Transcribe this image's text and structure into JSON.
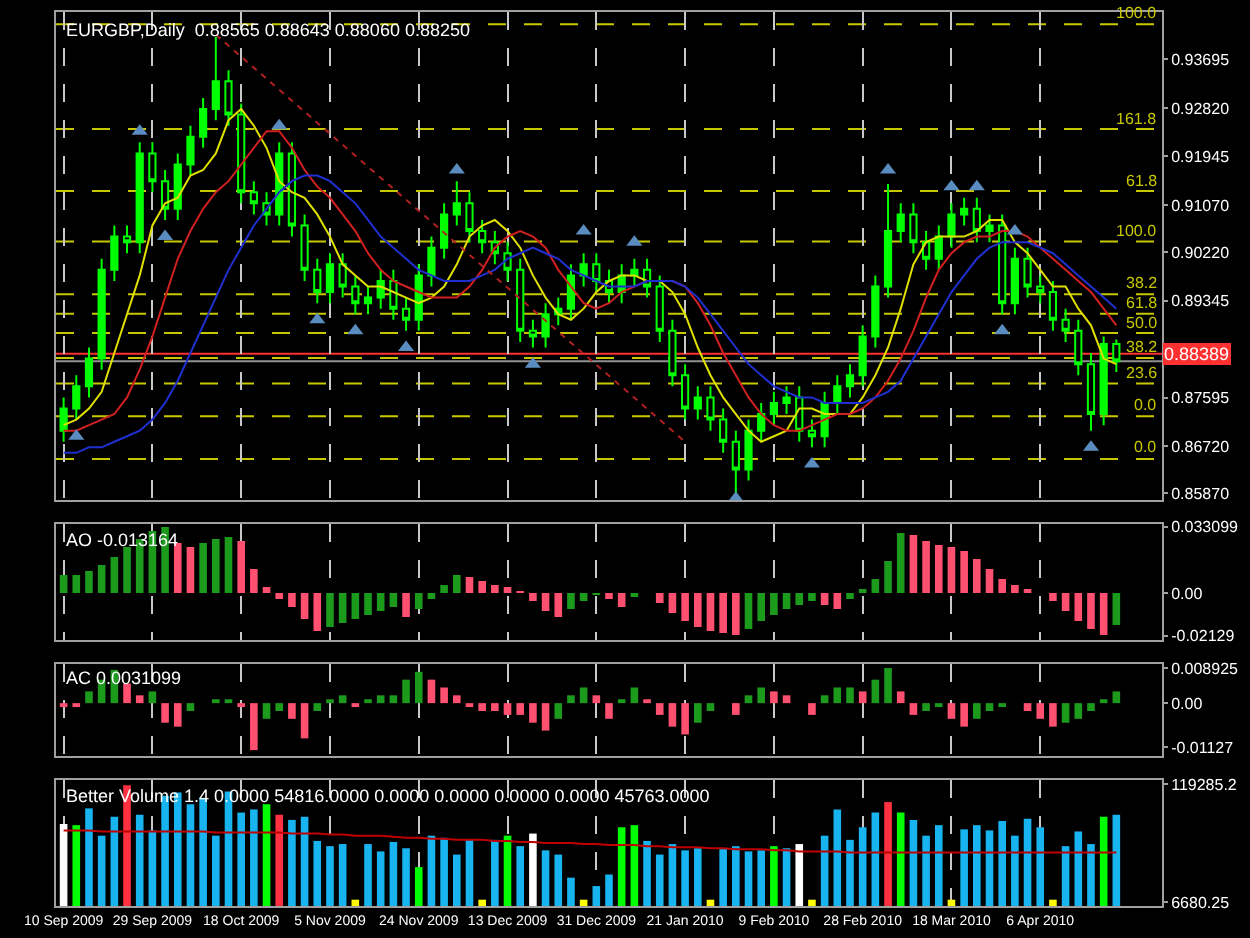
{
  "chart_data": [
    {
      "type": "candlestick",
      "title": "EURGBP,Daily  0.88565 0.88643 0.88060 0.88250",
      "color": "#00ff00",
      "grid": "x",
      "tick_labels": "y",
      "categories": [
        null,
        null,
        null,
        null,
        null,
        null,
        null,
        null,
        null,
        null,
        null,
        null,
        null,
        null,
        null,
        null,
        null,
        null,
        null,
        null,
        null,
        null,
        null,
        null,
        null,
        null,
        null,
        null,
        null,
        null,
        null,
        null,
        null,
        null,
        null,
        null,
        null,
        null,
        null,
        null,
        null,
        null,
        null,
        null,
        null,
        null,
        null,
        null,
        null,
        null,
        null,
        null,
        null,
        null,
        null,
        null,
        null,
        null,
        null,
        null,
        null,
        null,
        null,
        null,
        null,
        null,
        null,
        null,
        null,
        null,
        null,
        null,
        null,
        null,
        null,
        null,
        null,
        null,
        null,
        null,
        null,
        null,
        null,
        null
      ],
      "ohlc": [
        [
          0.87,
          0.876,
          0.868,
          0.874
        ],
        [
          0.874,
          0.88,
          0.872,
          0.878
        ],
        [
          0.878,
          0.885,
          0.876,
          0.883
        ],
        [
          0.883,
          0.901,
          0.881,
          0.899
        ],
        [
          0.899,
          0.907,
          0.897,
          0.905
        ],
        [
          0.905,
          0.907,
          0.902,
          0.904
        ],
        [
          0.904,
          0.922,
          0.902,
          0.92
        ],
        [
          0.92,
          0.922,
          0.913,
          0.915
        ],
        [
          0.915,
          0.917,
          0.908,
          0.91
        ],
        [
          0.91,
          0.92,
          0.908,
          0.918
        ],
        [
          0.918,
          0.925,
          0.916,
          0.923
        ],
        [
          0.923,
          0.93,
          0.921,
          0.928
        ],
        [
          0.928,
          0.941,
          0.926,
          0.933
        ],
        [
          0.933,
          0.935,
          0.925,
          0.927
        ],
        [
          0.927,
          0.929,
          0.911,
          0.913
        ],
        [
          0.913,
          0.915,
          0.909,
          0.911
        ],
        [
          0.911,
          0.913,
          0.907,
          0.909
        ],
        [
          0.909,
          0.922,
          0.907,
          0.92
        ],
        [
          0.92,
          0.922,
          0.905,
          0.907
        ],
        [
          0.907,
          0.909,
          0.897,
          0.899
        ],
        [
          0.899,
          0.901,
          0.893,
          0.895
        ],
        [
          0.895,
          0.902,
          0.893,
          0.9
        ],
        [
          0.9,
          0.902,
          0.894,
          0.896
        ],
        [
          0.896,
          0.898,
          0.891,
          0.893
        ],
        [
          0.893,
          0.896,
          0.891,
          0.894
        ],
        [
          0.894,
          0.899,
          0.892,
          0.897
        ],
        [
          0.897,
          0.899,
          0.89,
          0.892
        ],
        [
          0.892,
          0.894,
          0.888,
          0.89
        ],
        [
          0.89,
          0.9,
          0.888,
          0.898
        ],
        [
          0.898,
          0.905,
          0.896,
          0.903
        ],
        [
          0.903,
          0.911,
          0.901,
          0.909
        ],
        [
          0.909,
          0.915,
          0.907,
          0.911
        ],
        [
          0.911,
          0.913,
          0.904,
          0.906
        ],
        [
          0.906,
          0.908,
          0.902,
          0.904
        ],
        [
          0.904,
          0.906,
          0.9,
          0.902
        ],
        [
          0.902,
          0.904,
          0.897,
          0.899
        ],
        [
          0.899,
          0.901,
          0.886,
          0.888
        ],
        [
          0.888,
          0.89,
          0.885,
          0.887
        ],
        [
          0.887,
          0.893,
          0.885,
          0.891
        ],
        [
          0.891,
          0.894,
          0.889,
          0.892
        ],
        [
          0.892,
          0.9,
          0.89,
          0.898
        ],
        [
          0.898,
          0.902,
          0.896,
          0.9
        ],
        [
          0.9,
          0.902,
          0.895,
          0.897
        ],
        [
          0.897,
          0.899,
          0.893,
          0.895
        ],
        [
          0.895,
          0.9,
          0.893,
          0.898
        ],
        [
          0.898,
          0.901,
          0.896,
          0.899
        ],
        [
          0.899,
          0.901,
          0.894,
          0.896
        ],
        [
          0.896,
          0.898,
          0.886,
          0.888
        ],
        [
          0.888,
          0.89,
          0.878,
          0.88
        ],
        [
          0.88,
          0.882,
          0.872,
          0.874
        ],
        [
          0.874,
          0.878,
          0.872,
          0.876
        ],
        [
          0.876,
          0.878,
          0.87,
          0.872
        ],
        [
          0.872,
          0.874,
          0.866,
          0.868
        ],
        [
          0.868,
          0.87,
          0.8587,
          0.863
        ],
        [
          0.863,
          0.872,
          0.861,
          0.87
        ],
        [
          0.87,
          0.875,
          0.868,
          0.873
        ],
        [
          0.873,
          0.877,
          0.871,
          0.875
        ],
        [
          0.875,
          0.878,
          0.873,
          0.876
        ],
        [
          0.876,
          0.878,
          0.868,
          0.87
        ],
        [
          0.87,
          0.872,
          0.867,
          0.869
        ],
        [
          0.869,
          0.877,
          0.867,
          0.875
        ],
        [
          0.875,
          0.88,
          0.873,
          0.878
        ],
        [
          0.878,
          0.882,
          0.876,
          0.88
        ],
        [
          0.88,
          0.889,
          0.878,
          0.887
        ],
        [
          0.887,
          0.898,
          0.885,
          0.896
        ],
        [
          0.896,
          0.9145,
          0.894,
          0.906
        ],
        [
          0.906,
          0.911,
          0.904,
          0.909
        ],
        [
          0.909,
          0.911,
          0.902,
          0.904
        ],
        [
          0.904,
          0.906,
          0.899,
          0.901
        ],
        [
          0.901,
          0.907,
          0.899,
          0.905
        ],
        [
          0.905,
          0.911,
          0.903,
          0.909
        ],
        [
          0.909,
          0.912,
          0.907,
          0.91
        ],
        [
          0.91,
          0.912,
          0.904,
          0.906
        ],
        [
          0.906,
          0.909,
          0.904,
          0.907
        ],
        [
          0.907,
          0.909,
          0.891,
          0.893
        ],
        [
          0.893,
          0.903,
          0.891,
          0.901
        ],
        [
          0.901,
          0.903,
          0.894,
          0.896
        ],
        [
          0.896,
          0.898,
          0.893,
          0.895
        ],
        [
          0.895,
          0.897,
          0.888,
          0.89
        ],
        [
          0.89,
          0.892,
          0.886,
          0.888
        ],
        [
          0.888,
          0.89,
          0.88,
          0.882
        ],
        [
          0.882,
          0.884,
          0.87,
          0.873
        ],
        [
          0.873,
          0.887,
          0.871,
          0.88565
        ],
        [
          0.88565,
          0.88643,
          0.8806,
          0.8825
        ]
      ],
      "series": [
        {
          "type": "line",
          "color": "#e0e000",
          "values": [
            0.871,
            0.872,
            0.874,
            0.877,
            0.884,
            0.891,
            0.898,
            0.907,
            0.911,
            0.912,
            0.916,
            0.917,
            0.92,
            0.926,
            0.928,
            0.925,
            0.921,
            0.915,
            0.913,
            0.912,
            0.909,
            0.905,
            0.9,
            0.898,
            0.896,
            0.896,
            0.895,
            0.894,
            0.893,
            0.894,
            0.896,
            0.9,
            0.905,
            0.907,
            0.908,
            0.906,
            0.903,
            0.898,
            0.894,
            0.891,
            0.89,
            0.892,
            0.895,
            0.897,
            0.898,
            0.898,
            0.897,
            0.897,
            0.895,
            0.891,
            0.885,
            0.88,
            0.876,
            0.873,
            0.87,
            0.868,
            0.869,
            0.87,
            0.874,
            0.874,
            0.873,
            0.873,
            0.873,
            0.876,
            0.88,
            0.885,
            0.892,
            0.9,
            0.904,
            0.905,
            0.905,
            0.905,
            0.906,
            0.908,
            0.908,
            0.904,
            0.902,
            0.899,
            0.896,
            0.896,
            0.892,
            0.889,
            0.883,
            0.882
          ]
        },
        {
          "type": "line",
          "color": "#d02020",
          "values": [
            0.87,
            0.87,
            0.871,
            0.872,
            0.873,
            0.876,
            0.881,
            0.887,
            0.894,
            0.901,
            0.906,
            0.91,
            0.913,
            0.915,
            0.918,
            0.921,
            0.924,
            0.924,
            0.921,
            0.917,
            0.914,
            0.912,
            0.909,
            0.906,
            0.902,
            0.899,
            0.897,
            0.896,
            0.895,
            0.894,
            0.894,
            0.894,
            0.896,
            0.899,
            0.903,
            0.905,
            0.906,
            0.905,
            0.903,
            0.899,
            0.896,
            0.893,
            0.892,
            0.893,
            0.895,
            0.896,
            0.897,
            0.897,
            0.897,
            0.896,
            0.893,
            0.889,
            0.884,
            0.88,
            0.876,
            0.873,
            0.871,
            0.87,
            0.87,
            0.871,
            0.872,
            0.873,
            0.873,
            0.874,
            0.876,
            0.879,
            0.883,
            0.888,
            0.894,
            0.899,
            0.902,
            0.904,
            0.905,
            0.905,
            0.906,
            0.906,
            0.905,
            0.903,
            0.901,
            0.899,
            0.897,
            0.895,
            0.892,
            0.889
          ]
        },
        {
          "type": "line",
          "color": "#2030d0",
          "values": [
            0.866,
            0.866,
            0.867,
            0.867,
            0.868,
            0.869,
            0.87,
            0.872,
            0.875,
            0.879,
            0.884,
            0.889,
            0.894,
            0.899,
            0.903,
            0.907,
            0.91,
            0.913,
            0.915,
            0.916,
            0.916,
            0.915,
            0.913,
            0.911,
            0.908,
            0.905,
            0.903,
            0.901,
            0.899,
            0.898,
            0.897,
            0.897,
            0.897,
            0.898,
            0.899,
            0.901,
            0.902,
            0.903,
            0.902,
            0.901,
            0.899,
            0.898,
            0.897,
            0.896,
            0.896,
            0.896,
            0.897,
            0.897,
            0.897,
            0.896,
            0.894,
            0.891,
            0.888,
            0.885,
            0.882,
            0.88,
            0.878,
            0.877,
            0.876,
            0.876,
            0.875,
            0.875,
            0.875,
            0.875,
            0.876,
            0.877,
            0.879,
            0.883,
            0.887,
            0.891,
            0.895,
            0.898,
            0.901,
            0.903,
            0.904,
            0.904,
            0.904,
            0.903,
            0.902,
            0.9,
            0.898,
            0.896,
            0.894,
            0.892
          ]
        },
        {
          "type": "line",
          "color": "#b02020",
          "line_style": "dotted",
          "values": [
            null,
            null,
            null,
            null,
            null,
            null,
            null,
            null,
            null,
            null,
            null,
            null,
            0.9414,
            null,
            null,
            null,
            null,
            null,
            null,
            null,
            null,
            null,
            null,
            null,
            null,
            null,
            null,
            null,
            null,
            null,
            null,
            null,
            null,
            null,
            null,
            null,
            null,
            null,
            null,
            null,
            null,
            null,
            null,
            null,
            null,
            null,
            null,
            null,
            null,
            0.868,
            null,
            null,
            null,
            null,
            null,
            null,
            null,
            null,
            null,
            null,
            null,
            null,
            null,
            null,
            null,
            null,
            null,
            null,
            null,
            null,
            null,
            null,
            null,
            null,
            null,
            null,
            null,
            null,
            null,
            null,
            null,
            null,
            null,
            null
          ]
        },
        {
          "type": "scatter",
          "color": "#5b8cc0",
          "marker": "triangle",
          "values": [
            null,
            null,
            null,
            null,
            null,
            null,
            0.924,
            null,
            null,
            null,
            null,
            null,
            null,
            null,
            null,
            null,
            null,
            0.925,
            null,
            null,
            null,
            null,
            null,
            null,
            null,
            null,
            null,
            null,
            null,
            null,
            null,
            0.917,
            null,
            null,
            null,
            null,
            null,
            null,
            null,
            null,
            null,
            0.906,
            null,
            null,
            null,
            0.904,
            null,
            null,
            null,
            null,
            null,
            null,
            null,
            null,
            null,
            null,
            null,
            null,
            null,
            null,
            null,
            null,
            null,
            null,
            null,
            0.917,
            null,
            null,
            null,
            null,
            0.914,
            null,
            0.914,
            null,
            null,
            0.906,
            null,
            null,
            null,
            null,
            null,
            null,
            null,
            null
          ]
        },
        {
          "type": "scatter",
          "color": "#5b8cc0",
          "marker": "triangle",
          "values": [
            null,
            0.869,
            null,
            null,
            null,
            null,
            null,
            null,
            0.905,
            null,
            null,
            null,
            null,
            null,
            null,
            null,
            null,
            null,
            null,
            null,
            0.89,
            null,
            null,
            0.888,
            null,
            null,
            null,
            0.885,
            null,
            null,
            null,
            null,
            null,
            null,
            null,
            null,
            null,
            0.882,
            null,
            null,
            null,
            null,
            null,
            null,
            null,
            null,
            null,
            null,
            null,
            null,
            null,
            null,
            null,
            0.8578,
            null,
            null,
            null,
            null,
            null,
            0.864,
            null,
            null,
            null,
            null,
            null,
            null,
            null,
            null,
            null,
            null,
            null,
            null,
            null,
            null,
            0.888,
            null,
            null,
            null,
            null,
            null,
            null,
            0.867,
            null,
            null
          ]
        }
      ],
      "ylim": [
        0.8575,
        0.9455
      ],
      "yticks": [
        {
          "value": 0.93695,
          "label": "0.93695"
        },
        {
          "value": 0.9282,
          "label": "0.92820"
        },
        {
          "value": 0.91945,
          "label": "0.91945"
        },
        {
          "value": 0.9107,
          "label": "0.91070"
        },
        {
          "value": 0.9022,
          "label": "0.90220"
        },
        {
          "value": 0.89345,
          "label": "0.89345"
        },
        {
          "value": 0.87595,
          "label": "0.87595"
        },
        {
          "value": 0.8672,
          "label": "0.86720"
        },
        {
          "value": 0.8587,
          "label": "0.85870"
        }
      ],
      "annotations": [
        {
          "text": "100.0",
          "y": 0.9433
        },
        {
          "text": "161.8",
          "y": 0.9244
        },
        {
          "text": "61.8",
          "y": 0.9132
        },
        {
          "text": "100.0",
          "y": 0.9041
        },
        {
          "text": "38.2",
          "y": 0.8946
        },
        {
          "text": "61.8",
          "y": 0.8911
        },
        {
          "text": "50.0",
          "y": 0.8876
        },
        {
          "text": "38.2",
          "y": 0.8831
        },
        {
          "text": "23.6",
          "y": 0.8785
        },
        {
          "text": "0.0",
          "y": 0.8726
        },
        {
          "text": "0.0",
          "y": 0.8649
        }
      ],
      "ref_lines": [
        {
          "axis": "y",
          "value": 0.9433,
          "color": "#c8c800",
          "line_style": "dashed"
        },
        {
          "axis": "y",
          "value": 0.9244,
          "color": "#c8c800",
          "line_style": "dashed"
        },
        {
          "axis": "y",
          "value": 0.9132,
          "color": "#c8c800",
          "line_style": "dashed"
        },
        {
          "axis": "y",
          "value": 0.9041,
          "color": "#c8c800",
          "line_style": "dashed"
        },
        {
          "axis": "y",
          "value": 0.8946,
          "color": "#c8c800",
          "line_style": "dashed"
        },
        {
          "axis": "y",
          "value": 0.8911,
          "color": "#c8c800",
          "line_style": "dashed"
        },
        {
          "axis": "y",
          "value": 0.8876,
          "color": "#c8c800",
          "line_style": "dashed"
        },
        {
          "axis": "y",
          "value": 0.8831,
          "color": "#c8c800",
          "line_style": "dashed"
        },
        {
          "axis": "y",
          "value": 0.8785,
          "color": "#c8c800",
          "line_style": "dashed"
        },
        {
          "axis": "y",
          "value": 0.8726,
          "color": "#c8c800",
          "line_style": "dashed"
        },
        {
          "axis": "y",
          "value": 0.8649,
          "color": "#c8c800",
          "line_style": "dashed"
        },
        {
          "axis": "y",
          "value": 0.88389,
          "label": "0.88389",
          "color": "#ff3030",
          "line_style": "solid"
        },
        {
          "axis": "y",
          "value": 0.8825,
          "color": "#909090",
          "line_style": "solid"
        }
      ]
    },
    {
      "type": "bar",
      "title": "AO -0.013164",
      "grid": "x",
      "tick_labels": "y",
      "categories": [
        null,
        null,
        null,
        null,
        null,
        null,
        null,
        null,
        null,
        null,
        null,
        null,
        null,
        null,
        null,
        null,
        null,
        null,
        null,
        null,
        null,
        null,
        null,
        null,
        null,
        null,
        null,
        null,
        null,
        null,
        null,
        null,
        null,
        null,
        null,
        null,
        null,
        null,
        null,
        null,
        null,
        null,
        null,
        null,
        null,
        null,
        null,
        null,
        null,
        null,
        null,
        null,
        null,
        null,
        null,
        null,
        null,
        null,
        null,
        null,
        null,
        null,
        null,
        null,
        null,
        null,
        null,
        null,
        null,
        null,
        null,
        null,
        null,
        null,
        null,
        null,
        null,
        null,
        null,
        null,
        null,
        null,
        null,
        null
      ],
      "values": [
        0.009,
        0.009,
        0.011,
        0.014,
        0.018,
        0.023,
        0.027,
        0.031,
        0.033,
        0.025,
        0.023,
        0.025,
        0.027,
        0.028,
        0.026,
        0.012,
        0.003,
        -0.003,
        -0.007,
        -0.013,
        -0.019,
        -0.017,
        -0.015,
        -0.013,
        -0.011,
        -0.009,
        -0.007,
        -0.012,
        -0.008,
        -0.003,
        0.004,
        0.009,
        0.008,
        0.006,
        0.004,
        0.003,
        0.001,
        -0.004,
        -0.009,
        -0.012,
        -0.008,
        -0.004,
        -0.001,
        -0.003,
        -0.007,
        -0.002,
        0.0,
        -0.005,
        -0.01,
        -0.014,
        -0.017,
        -0.019,
        -0.02,
        -0.021,
        -0.018,
        -0.014,
        -0.011,
        -0.008,
        -0.006,
        -0.004,
        -0.006,
        -0.008,
        -0.003,
        0.002,
        0.007,
        0.016,
        0.03,
        0.029,
        0.026,
        0.024,
        0.023,
        0.021,
        0.017,
        0.012,
        0.007,
        0.004,
        0.002,
        0.0,
        -0.004,
        -0.009,
        -0.014,
        -0.018,
        -0.021,
        -0.016
      ],
      "colors": [
        "#1c9a1c",
        "#1c9a1c",
        "#1c9a1c",
        "#1c9a1c",
        "#1c9a1c",
        "#1c9a1c",
        "#1c9a1c",
        "#1c9a1c",
        "#1c9a1c",
        "#ff5070",
        "#ff5070",
        "#1c9a1c",
        "#1c9a1c",
        "#1c9a1c",
        "#ff5070",
        "#ff5070",
        "#ff5070",
        "#ff5070",
        "#ff5070",
        "#ff5070",
        "#ff5070",
        "#1c9a1c",
        "#1c9a1c",
        "#1c9a1c",
        "#1c9a1c",
        "#1c9a1c",
        "#1c9a1c",
        "#ff5070",
        "#1c9a1c",
        "#1c9a1c",
        "#1c9a1c",
        "#1c9a1c",
        "#ff5070",
        "#ff5070",
        "#ff5070",
        "#ff5070",
        "#ff5070",
        "#ff5070",
        "#ff5070",
        "#ff5070",
        "#1c9a1c",
        "#1c9a1c",
        "#1c9a1c",
        "#ff5070",
        "#ff5070",
        "#1c9a1c",
        "#1c9a1c",
        "#ff5070",
        "#ff5070",
        "#ff5070",
        "#ff5070",
        "#ff5070",
        "#ff5070",
        "#ff5070",
        "#1c9a1c",
        "#1c9a1c",
        "#1c9a1c",
        "#1c9a1c",
        "#1c9a1c",
        "#1c9a1c",
        "#ff5070",
        "#ff5070",
        "#1c9a1c",
        "#1c9a1c",
        "#1c9a1c",
        "#1c9a1c",
        "#1c9a1c",
        "#ff5070",
        "#ff5070",
        "#ff5070",
        "#ff5070",
        "#ff5070",
        "#ff5070",
        "#ff5070",
        "#ff5070",
        "#ff5070",
        "#ff5070",
        "#ff5070",
        "#ff5070",
        "#ff5070",
        "#ff5070",
        "#ff5070",
        "#ff5070",
        "#1c9a1c"
      ],
      "ylim": [
        -0.0235,
        0.0345
      ],
      "yticks": [
        0.033099,
        {
          "value": 0,
          "label": "0.00"
        },
        -0.02129
      ]
    },
    {
      "type": "bar",
      "title": "AC 0.0031099",
      "grid": "x",
      "tick_labels": "y",
      "categories": [
        null,
        null,
        null,
        null,
        null,
        null,
        null,
        null,
        null,
        null,
        null,
        null,
        null,
        null,
        null,
        null,
        null,
        null,
        null,
        null,
        null,
        null,
        null,
        null,
        null,
        null,
        null,
        null,
        null,
        null,
        null,
        null,
        null,
        null,
        null,
        null,
        null,
        null,
        null,
        null,
        null,
        null,
        null,
        null,
        null,
        null,
        null,
        null,
        null,
        null,
        null,
        null,
        null,
        null,
        null,
        null,
        null,
        null,
        null,
        null,
        null,
        null,
        null,
        null,
        null,
        null,
        null,
        null,
        null,
        null,
        null,
        null,
        null,
        null,
        null,
        null,
        null,
        null,
        null,
        null,
        null,
        null,
        null,
        null
      ],
      "values": [
        -0.001,
        -0.001,
        0.003,
        0.006,
        0.0085,
        0.005,
        0.002,
        0.003,
        -0.005,
        -0.006,
        -0.002,
        0.0,
        0.001,
        0.001,
        -0.001,
        -0.012,
        -0.004,
        -0.002,
        -0.004,
        -0.009,
        -0.002,
        0.001,
        0.002,
        -0.001,
        0.001,
        0.002,
        0.002,
        0.006,
        0.008,
        0.006,
        0.004,
        0.002,
        -0.001,
        -0.002,
        -0.002,
        -0.003,
        -0.003,
        -0.005,
        -0.007,
        -0.004,
        0.002,
        0.004,
        0.002,
        -0.004,
        0.001,
        0.004,
        0.001,
        -0.003,
        -0.006,
        -0.008,
        -0.005,
        -0.002,
        0.0,
        -0.003,
        0.002,
        0.004,
        0.003,
        0.002,
        0.0,
        -0.003,
        0.002,
        0.004,
        0.004,
        0.003,
        0.006,
        0.009,
        0.003,
        -0.003,
        -0.002,
        -0.001,
        -0.004,
        -0.006,
        -0.004,
        -0.002,
        -0.001,
        0.0,
        -0.002,
        -0.004,
        -0.006,
        -0.005,
        -0.004,
        -0.002,
        0.001,
        0.003
      ],
      "colors": [
        "#ff5070",
        "#ff5070",
        "#1c9a1c",
        "#1c9a1c",
        "#1c9a1c",
        "#ff5070",
        "#ff5070",
        "#1c9a1c",
        "#ff5070",
        "#ff5070",
        "#1c9a1c",
        "#1c9a1c",
        "#1c9a1c",
        "#1c9a1c",
        "#ff5070",
        "#ff5070",
        "#1c9a1c",
        "#1c9a1c",
        "#ff5070",
        "#ff5070",
        "#1c9a1c",
        "#1c9a1c",
        "#1c9a1c",
        "#ff5070",
        "#1c9a1c",
        "#1c9a1c",
        "#1c9a1c",
        "#1c9a1c",
        "#1c9a1c",
        "#ff5070",
        "#ff5070",
        "#ff5070",
        "#ff5070",
        "#ff5070",
        "#ff5070",
        "#ff5070",
        "#ff5070",
        "#ff5070",
        "#ff5070",
        "#1c9a1c",
        "#1c9a1c",
        "#1c9a1c",
        "#ff5070",
        "#ff5070",
        "#1c9a1c",
        "#1c9a1c",
        "#ff5070",
        "#ff5070",
        "#ff5070",
        "#ff5070",
        "#1c9a1c",
        "#1c9a1c",
        "#1c9a1c",
        "#ff5070",
        "#1c9a1c",
        "#1c9a1c",
        "#ff5070",
        "#ff5070",
        "#ff5070",
        "#ff5070",
        "#1c9a1c",
        "#1c9a1c",
        "#1c9a1c",
        "#ff5070",
        "#1c9a1c",
        "#1c9a1c",
        "#ff5070",
        "#ff5070",
        "#1c9a1c",
        "#1c9a1c",
        "#ff5070",
        "#ff5070",
        "#1c9a1c",
        "#1c9a1c",
        "#1c9a1c",
        "#1c9a1c",
        "#ff5070",
        "#ff5070",
        "#ff5070",
        "#1c9a1c",
        "#1c9a1c",
        "#1c9a1c",
        "#1c9a1c",
        "#1c9a1c"
      ],
      "ylim": [
        -0.0135,
        0.01
      ],
      "yticks": [
        0.008925,
        {
          "value": 0,
          "label": "0.00"
        },
        -0.01127
      ]
    },
    {
      "type": "bar",
      "title": "Better Volume 1.4 0.0000 54816.0000 0.0000 0.0000 0.0000 0.0000 45763.0000",
      "grid": "x",
      "categories": [
        "10 Sep 2009",
        null,
        null,
        null,
        null,
        null,
        null,
        "29 Sep 2009",
        null,
        null,
        null,
        null,
        null,
        null,
        "18 Oct 2009",
        null,
        null,
        null,
        null,
        null,
        null,
        "5 Nov 2009",
        null,
        null,
        null,
        null,
        null,
        null,
        "24 Nov 2009",
        null,
        null,
        null,
        null,
        null,
        null,
        "13 Dec 2009",
        null,
        null,
        null,
        null,
        null,
        null,
        "31 Dec 2009",
        null,
        null,
        null,
        null,
        null,
        null,
        "21 Jan 2010",
        null,
        null,
        null,
        null,
        null,
        null,
        "9 Feb 2010",
        null,
        null,
        null,
        null,
        null,
        null,
        "28 Feb 2010",
        null,
        null,
        null,
        null,
        null,
        null,
        "18 Mar 2010",
        null,
        null,
        null,
        null,
        null,
        null,
        "6 Apr 2010",
        null,
        null,
        null,
        null,
        null,
        null
      ],
      "values": [
        81000,
        80000,
        96000,
        70000,
        88000,
        118000,
        90000,
        75000,
        108000,
        111000,
        100000,
        106000,
        70000,
        112000,
        92000,
        95000,
        100000,
        90000,
        85000,
        88000,
        65000,
        60000,
        62000,
        9000,
        62000,
        55000,
        64000,
        58000,
        40000,
        70000,
        68000,
        52000,
        66000,
        9000,
        66000,
        70000,
        60000,
        72000,
        56000,
        52000,
        30000,
        9000,
        22000,
        33000,
        78000,
        80000,
        65000,
        52000,
        62000,
        56000,
        58000,
        9000,
        58000,
        60000,
        55000,
        56000,
        60000,
        58000,
        62000,
        9000,
        70000,
        95000,
        66000,
        78000,
        92000,
        102000,
        92000,
        85000,
        70000,
        80000,
        9000,
        76000,
        80000,
        75000,
        84000,
        70000,
        86000,
        78000,
        9000,
        60000,
        74000,
        62000,
        88000,
        90000
      ],
      "colors": [
        "#ffffff",
        "#00ff00",
        "#18b4f0",
        "#18b4f0",
        "#18b4f0",
        "#ff3040",
        "#18b4f0",
        "#18b4f0",
        "#18b4f0",
        "#18b4f0",
        "#18b4f0",
        "#18b4f0",
        "#18b4f0",
        "#18b4f0",
        "#18b4f0",
        "#18b4f0",
        "#00ff00",
        "#ff3040",
        "#18b4f0",
        "#18b4f0",
        "#18b4f0",
        "#18b4f0",
        "#18b4f0",
        "#ffff00",
        "#18b4f0",
        "#18b4f0",
        "#18b4f0",
        "#18b4f0",
        "#00ff00",
        "#18b4f0",
        "#18b4f0",
        "#18b4f0",
        "#18b4f0",
        "#ffff00",
        "#18b4f0",
        "#00ff00",
        "#18b4f0",
        "#ffffff",
        "#18b4f0",
        "#18b4f0",
        "#18b4f0",
        "#ffff00",
        "#18b4f0",
        "#18b4f0",
        "#00ff00",
        "#00ff00",
        "#18b4f0",
        "#18b4f0",
        "#18b4f0",
        "#18b4f0",
        "#18b4f0",
        "#ffff00",
        "#18b4f0",
        "#18b4f0",
        "#18b4f0",
        "#18b4f0",
        "#00ff00",
        "#18b4f0",
        "#ffffff",
        "#ffff00",
        "#18b4f0",
        "#18b4f0",
        "#18b4f0",
        "#18b4f0",
        "#18b4f0",
        "#ff3040",
        "#00ff00",
        "#18b4f0",
        "#18b4f0",
        "#18b4f0",
        "#ffff00",
        "#18b4f0",
        "#18b4f0",
        "#18b4f0",
        "#18b4f0",
        "#18b4f0",
        "#18b4f0",
        "#18b4f0",
        "#ffff00",
        "#18b4f0",
        "#18b4f0",
        "#18b4f0",
        "#00ff00",
        "#18b4f0"
      ],
      "series": [
        {
          "type": "line",
          "color": "#c00000",
          "values": [
            75000,
            75000,
            75000,
            74000,
            74000,
            74000,
            74000,
            74000,
            74000,
            74000,
            74000,
            74000,
            73000,
            73000,
            73000,
            73000,
            73000,
            73000,
            72000,
            72000,
            72000,
            71000,
            71000,
            70000,
            70000,
            70000,
            69000,
            68000,
            68000,
            67000,
            67000,
            66000,
            66000,
            66000,
            65000,
            65000,
            64000,
            64000,
            63000,
            63000,
            63000,
            62000,
            62000,
            61000,
            61000,
            61000,
            60000,
            60000,
            59000,
            59000,
            59000,
            58000,
            58000,
            57000,
            57000,
            57000,
            56000,
            56000,
            55000,
            55000,
            55000,
            55000,
            54000,
            54000,
            54000,
            54000,
            54000,
            54000,
            54000,
            54000,
            54000,
            54000,
            54000,
            54000,
            54000,
            54000,
            54000,
            54000,
            54000,
            54000,
            54000,
            54000,
            54000,
            54000
          ]
        }
      ],
      "ylim": [
        3000,
        123000
      ],
      "yticks": [
        119285.2,
        6680.25
      ]
    }
  ]
}
